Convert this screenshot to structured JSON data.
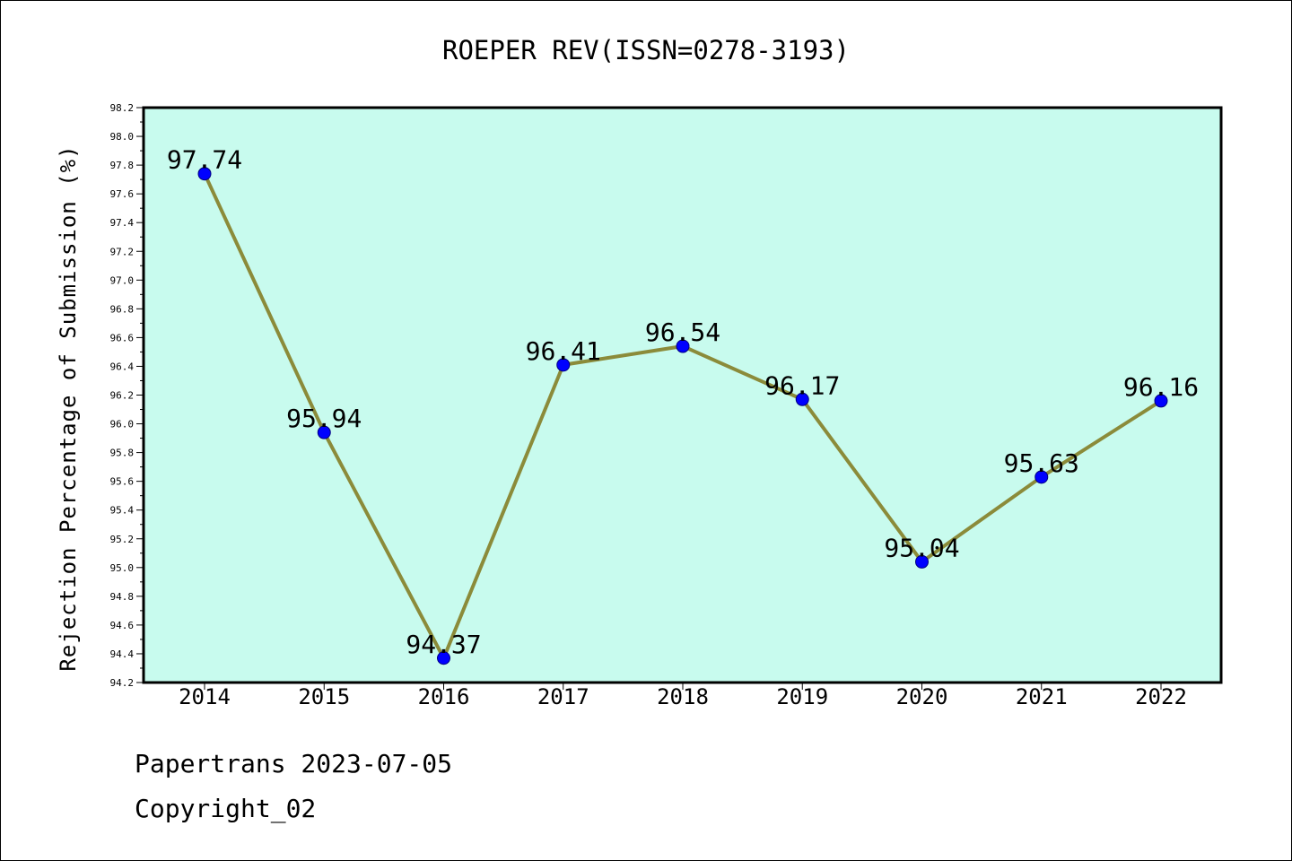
{
  "chart_data": {
    "type": "line",
    "title": "ROEPER REV(ISSN=0278-3193)",
    "xlabel": "",
    "ylabel": "Rejection Percentage of Submission (%)",
    "categories": [
      "2014",
      "2015",
      "2016",
      "2017",
      "2018",
      "2019",
      "2020",
      "2021",
      "2022"
    ],
    "series": [
      {
        "values": [
          97.74,
          95.94,
          94.37,
          96.41,
          96.54,
          96.17,
          95.04,
          95.63,
          96.16
        ],
        "labels": [
          "97.74",
          "95.94",
          "94.37",
          "96.41",
          "96.54",
          "96.17",
          "95.04",
          "95.63",
          "96.16"
        ]
      }
    ],
    "ylim": [
      94.2,
      98.2
    ],
    "yticks": [
      "94.2",
      "94.4",
      "94.6",
      "94.8",
      "95.0",
      "95.2",
      "95.4",
      "95.6",
      "95.8",
      "96.0",
      "96.2",
      "96.4",
      "96.6",
      "96.8",
      "97.0",
      "97.2",
      "97.4",
      "97.6",
      "97.8",
      "98.0",
      "98.2"
    ],
    "grid": false,
    "legend": "none",
    "colors": {
      "plot_background": "#c8fbee",
      "line": "#8b8b3a",
      "marker": "#0000ff",
      "axis": "#000000"
    }
  },
  "footer": {
    "source": "Papertrans 2023-07-05",
    "copyright": "Copyright_02"
  }
}
